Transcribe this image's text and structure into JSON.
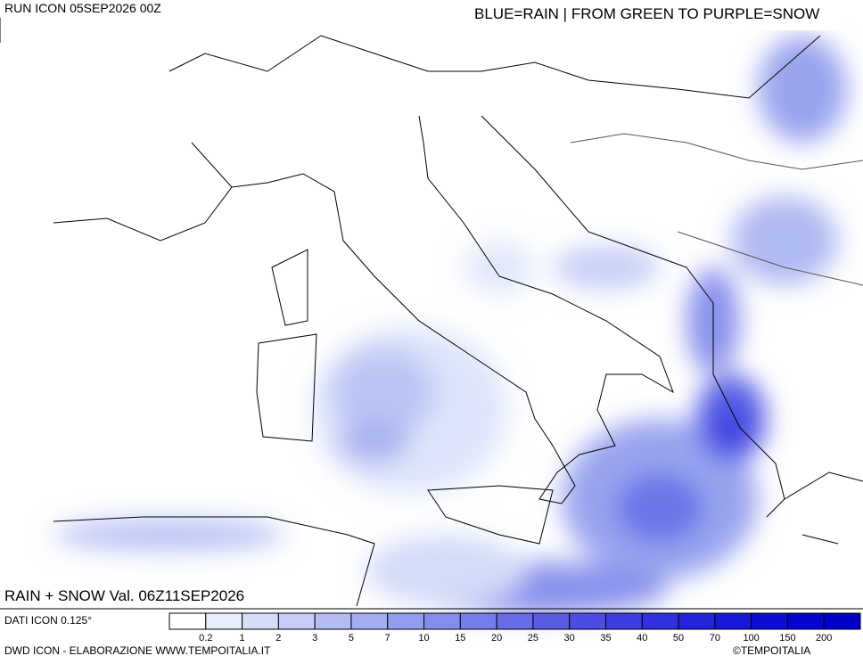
{
  "header": {
    "run": "RUN ICON 05SEP2026 00Z",
    "key": "BLUE=RAIN | FROM GREEN TO PURPLE=SNOW"
  },
  "map": {
    "title": "RAIN + SNOW Val. 06Z11SEP2026"
  },
  "footer": {
    "resolution": "DATI ICON 0.125°",
    "credit": "DWD ICON - ELABORAZIONE WWW.TEMPOITALIA.IT",
    "copyright": "©TEMPOITALIA"
  },
  "legend": {
    "labels": [
      "0.2",
      "1",
      "2",
      "3",
      "5",
      "7",
      "10",
      "15",
      "20",
      "25",
      "30",
      "35",
      "40",
      "50",
      "70",
      "100",
      "150",
      "200"
    ],
    "colors": [
      "#ffffff",
      "#e6eefc",
      "#d4def8",
      "#c4cdf6",
      "#b4bcf4",
      "#a4acf2",
      "#949cf0",
      "#858cee",
      "#767ceb",
      "#686ce8",
      "#5a5ce6",
      "#4c4ce4",
      "#3e3ce2",
      "#3030e0",
      "#2424dc",
      "#1818d8",
      "#0c0cd4",
      "#0404d0",
      "#0000c8"
    ]
  }
}
